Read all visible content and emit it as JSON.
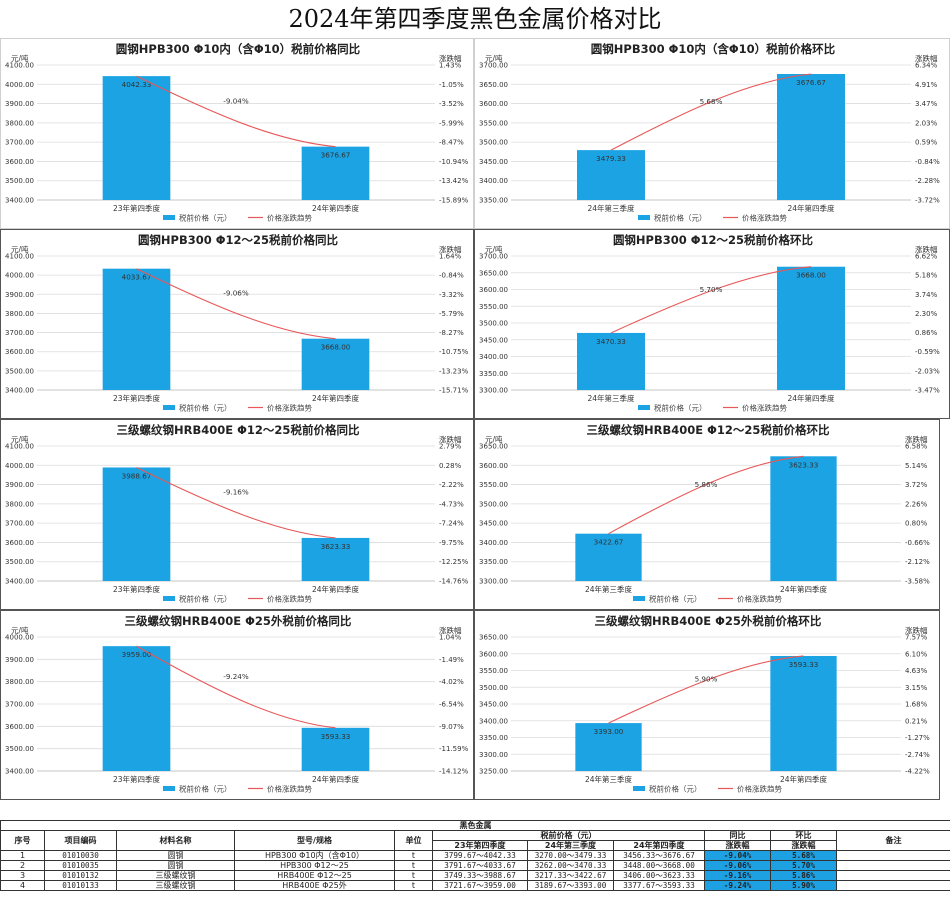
{
  "page_title": "2024年第四季度黑色金属价格对比",
  "colors": {
    "bar": "#1ba3e3",
    "line": "#e85858",
    "grid": "#dcdcdc",
    "highlight": "#1da1e2"
  },
  "chart_data": [
    {
      "type": "bar",
      "title": "圆钢HPB300 Φ10内（含Φ10）税前价格同比",
      "ylabel": "元/吨",
      "y2label": "涨跌幅",
      "categories": [
        "23年第四季度",
        "24年第四季度"
      ],
      "values": [
        4042.33,
        3676.67
      ],
      "value_labels": [
        "4042.33",
        "3676.67"
      ],
      "ylim": [
        3400,
        4100
      ],
      "y_ticks": [
        "4100.00",
        "4000.00",
        "3900.00",
        "3800.00",
        "3700.00",
        "3600.00",
        "3500.00",
        "3400.00"
      ],
      "y2_ticks": [
        "1.43%",
        "-1.05%",
        "-3.52%",
        "-5.99%",
        "-8.47%",
        "-10.94%",
        "-13.42%",
        "-15.89%"
      ],
      "line_label": "-9.04%",
      "legend": [
        "税前价格（元）",
        "价格涨跌趋势"
      ]
    },
    {
      "type": "bar",
      "title": "圆钢HPB300 Φ10内（含Φ10）税前价格环比",
      "ylabel": "元/吨",
      "y2label": "涨跌幅",
      "categories": [
        "24年第三季度",
        "24年第四季度"
      ],
      "values": [
        3479.33,
        3676.67
      ],
      "value_labels": [
        "3479.33",
        "3676.67"
      ],
      "ylim": [
        3350,
        3700
      ],
      "y_ticks": [
        "3700.00",
        "3650.00",
        "3600.00",
        "3550.00",
        "3500.00",
        "3450.00",
        "3400.00",
        "3350.00"
      ],
      "y2_ticks": [
        "6.34%",
        "4.91%",
        "3.47%",
        "2.03%",
        "0.59%",
        "-0.84%",
        "-2.28%",
        "-3.72%"
      ],
      "line_label": "5.68%",
      "legend": [
        "税前价格（元）",
        "价格涨跌趋势"
      ]
    },
    {
      "type": "bar",
      "title": "圆钢HPB300 Φ12～25税前价格同比",
      "ylabel": "元/吨",
      "y2label": "涨跌幅",
      "categories": [
        "23年第四季度",
        "24年第四季度"
      ],
      "values": [
        4033.67,
        3668.0
      ],
      "value_labels": [
        "4033.67",
        "3668.00"
      ],
      "ylim": [
        3400,
        4100
      ],
      "y_ticks": [
        "4100.00",
        "4000.00",
        "3900.00",
        "3800.00",
        "3700.00",
        "3600.00",
        "3500.00",
        "3400.00"
      ],
      "y2_ticks": [
        "1.64%",
        "-0.84%",
        "-3.32%",
        "-5.79%",
        "-8.27%",
        "-10.75%",
        "-13.23%",
        "-15.71%"
      ],
      "line_label": "-9.06%",
      "legend": [
        "税前价格（元）",
        "价格涨跌趋势"
      ]
    },
    {
      "type": "bar",
      "title": "圆钢HPB300 Φ12～25税前价格环比",
      "ylabel": "元/吨",
      "y2label": "涨跌幅",
      "categories": [
        "24年第三季度",
        "24年第四季度"
      ],
      "values": [
        3470.33,
        3668.0
      ],
      "value_labels": [
        "3470.33",
        "3668.00"
      ],
      "ylim": [
        3300,
        3700
      ],
      "y_ticks": [
        "3700.00",
        "3650.00",
        "3600.00",
        "3550.00",
        "3500.00",
        "3450.00",
        "3400.00",
        "3350.00",
        "3300.00"
      ],
      "y2_ticks": [
        "6.62%",
        "5.18%",
        "3.74%",
        "2.30%",
        "0.86%",
        "-0.59%",
        "-2.03%",
        "-3.47%"
      ],
      "line_label": "5.70%",
      "legend": [
        "税前价格（元）",
        "价格涨跌趋势"
      ]
    },
    {
      "type": "bar",
      "title": "三级螺纹钢HRB400E Φ12～25税前价格同比",
      "ylabel": "元/吨",
      "y2label": "涨跌幅",
      "categories": [
        "23年第四季度",
        "24年第四季度"
      ],
      "values": [
        3988.67,
        3623.33
      ],
      "value_labels": [
        "3988.67",
        "3623.33"
      ],
      "ylim": [
        3400,
        4100
      ],
      "y_ticks": [
        "4100.00",
        "4000.00",
        "3900.00",
        "3800.00",
        "3700.00",
        "3600.00",
        "3500.00",
        "3400.00"
      ],
      "y2_ticks": [
        "2.79%",
        "0.28%",
        "-2.22%",
        "-4.73%",
        "-7.24%",
        "-9.75%",
        "-12.25%",
        "-14.76%"
      ],
      "line_label": "-9.16%",
      "legend": [
        "税前价格（元）",
        "价格涨跌趋势"
      ]
    },
    {
      "type": "bar",
      "title": "三级螺纹钢HRB400E Φ12～25税前价格环比",
      "ylabel": "元/吨",
      "y2label": "涨跌幅",
      "categories": [
        "24年第三季度",
        "24年第四季度"
      ],
      "values": [
        3422.67,
        3623.33
      ],
      "value_labels": [
        "3422.67",
        "3623.33"
      ],
      "ylim": [
        3300,
        3650
      ],
      "y_ticks": [
        "3650.00",
        "3600.00",
        "3550.00",
        "3500.00",
        "3450.00",
        "3400.00",
        "3350.00",
        "3300.00"
      ],
      "y2_ticks": [
        "6.58%",
        "5.14%",
        "3.72%",
        "2.26%",
        "0.80%",
        "-0.66%",
        "-2.12%",
        "-3.58%"
      ],
      "line_label": "5.86%",
      "legend": [
        "税前价格（元）",
        "价格涨跌趋势"
      ]
    },
    {
      "type": "bar",
      "title": "三级螺纹钢HRB400E Φ25外税前价格同比",
      "ylabel": "元/吨",
      "y2label": "涨跌幅",
      "categories": [
        "23年第四季度",
        "24年第四季度"
      ],
      "values": [
        3959.0,
        3593.33
      ],
      "value_labels": [
        "3959.00",
        "3593.33"
      ],
      "ylim": [
        3400,
        4000
      ],
      "y_ticks": [
        "4000.00",
        "3900.00",
        "3800.00",
        "3700.00",
        "3600.00",
        "3500.00",
        "3400.00"
      ],
      "y2_ticks": [
        "1.04%",
        "-1.49%",
        "-4.02%",
        "-6.54%",
        "-9.07%",
        "-11.59%",
        "-14.12%"
      ],
      "line_label": "-9.24%",
      "legend": [
        "税前价格（元）",
        "价格涨跌趋势"
      ]
    },
    {
      "type": "bar",
      "title": "三级螺纹钢HRB400E Φ25外税前价格环比",
      "ylabel": "",
      "y2label": "涨跌幅",
      "categories": [
        "24年第三季度",
        "24年第四季度"
      ],
      "values": [
        3393.0,
        3593.33
      ],
      "value_labels": [
        "3393.00",
        "3593.33"
      ],
      "ylim": [
        3250,
        3650
      ],
      "y_ticks": [
        "3650.00",
        "3600.00",
        "3550.00",
        "3500.00",
        "3450.00",
        "3400.00",
        "3350.00",
        "3300.00",
        "3250.00"
      ],
      "y2_ticks": [
        "7.57%",
        "6.10%",
        "4.63%",
        "3.15%",
        "1.68%",
        "0.21%",
        "-1.27%",
        "-2.74%",
        "-4.22%"
      ],
      "line_label": "5.90%",
      "legend": [
        "税前价格（元）",
        "价格涨跌趋势"
      ]
    }
  ],
  "table": {
    "group_title": "黑色金属",
    "headers": {
      "seq": "序号",
      "code": "项目编码",
      "name": "材料名称",
      "spec": "型号/规格",
      "unit": "单位",
      "price_group": "税前价格（元）",
      "q4_2023": "23年第四季度",
      "q3_2024": "24年第三季度",
      "q4_2024": "24年第四季度",
      "yoy_line1": "同比",
      "yoy_line2": "涨跌幅",
      "qoq_line1": "环比",
      "qoq_line2": "涨跌幅",
      "remark": "备注"
    },
    "rows": [
      {
        "seq": "1",
        "code": "01010030",
        "name": "圆钢",
        "spec": "HPB300 Φ10内（含Φ10）",
        "unit": "t",
        "q4_2023": "3799.67～4042.33",
        "q3_2024": "3270.00～3479.33",
        "q4_2024": "3456.33～3676.67",
        "yoy": "-9.04%",
        "qoq": "5.68%",
        "remark": ""
      },
      {
        "seq": "2",
        "code": "01010035",
        "name": "圆钢",
        "spec": "HPB300 Φ12～25",
        "unit": "t",
        "q4_2023": "3791.67～4033.67",
        "q3_2024": "3262.00～3470.33",
        "q4_2024": "3448.00～3668.00",
        "yoy": "-9.06%",
        "qoq": "5.70%",
        "remark": ""
      },
      {
        "seq": "3",
        "code": "01010132",
        "name": "三级螺纹钢",
        "spec": "HRB400E Φ12～25",
        "unit": "t",
        "q4_2023": "3749.33～3988.67",
        "q3_2024": "3217.33～3422.67",
        "q4_2024": "3406.00～3623.33",
        "yoy": "-9.16%",
        "qoq": "5.86%",
        "remark": ""
      },
      {
        "seq": "4",
        "code": "01010133",
        "name": "三级螺纹钢",
        "spec": "HRB400E Φ25外",
        "unit": "t",
        "q4_2023": "3721.67～3959.00",
        "q3_2024": "3189.67～3393.00",
        "q4_2024": "3377.67～3593.33",
        "yoy": "-9.24%",
        "qoq": "5.90%",
        "remark": ""
      }
    ]
  }
}
